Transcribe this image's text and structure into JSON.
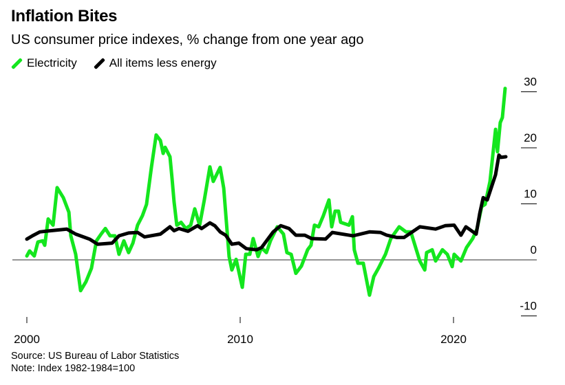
{
  "chart_data": {
    "type": "line",
    "title": "Inflation Bites",
    "subtitle": "US consumer price indexes, % change from one year ago",
    "xlabel": "",
    "ylabel": "",
    "xlim": [
      2000,
      2022.6
    ],
    "ylim": [
      -10,
      30
    ],
    "x_ticks": [
      2000,
      2010,
      2020
    ],
    "x_tick_labels": [
      "2000",
      "2010",
      "2020"
    ],
    "y_ticks": [
      30,
      20,
      10,
      0,
      -10
    ],
    "y_tick_labels": [
      "30",
      "20",
      "10",
      "0",
      "-10"
    ],
    "legend_position": "top-left",
    "zero_line": true,
    "series": [
      {
        "name": "Electricity",
        "color": "#14e61e",
        "x": [
          2000.0,
          2000.13,
          2000.35,
          2000.52,
          2000.74,
          2000.84,
          2001.0,
          2001.23,
          2001.42,
          2001.71,
          2001.97,
          2002.06,
          2002.29,
          2002.52,
          2002.77,
          2003.03,
          2003.26,
          2003.48,
          2003.68,
          2003.9,
          2004.13,
          2004.32,
          2004.55,
          2004.77,
          2004.97,
          2005.19,
          2005.42,
          2005.61,
          2005.84,
          2006.06,
          2006.26,
          2006.39,
          2006.48,
          2006.71,
          2006.81,
          2006.9,
          2007.03,
          2007.23,
          2007.45,
          2007.68,
          2007.87,
          2008.1,
          2008.32,
          2008.58,
          2008.74,
          2009.06,
          2009.23,
          2009.48,
          2009.61,
          2009.81,
          2010.1,
          2010.26,
          2010.45,
          2010.61,
          2010.84,
          2011.0,
          2011.23,
          2011.42,
          2011.74,
          2012.03,
          2012.19,
          2012.39,
          2012.61,
          2012.87,
          2013.16,
          2013.32,
          2013.48,
          2013.68,
          2013.9,
          2014.16,
          2014.29,
          2014.45,
          2014.61,
          2014.71,
          2015.1,
          2015.26,
          2015.35,
          2015.52,
          2015.77,
          2016.06,
          2016.26,
          2016.48,
          2016.81,
          2017.06,
          2017.45,
          2017.77,
          2018.0,
          2018.16,
          2018.42,
          2018.65,
          2018.74,
          2019.0,
          2019.16,
          2019.48,
          2019.71,
          2019.94,
          2020.03,
          2020.35,
          2020.61,
          2020.9,
          2021.1,
          2021.32,
          2021.48,
          2021.71,
          2021.97,
          2022.06,
          2022.19,
          2022.29,
          2022.42
        ],
        "values": [
          0.7,
          1.6,
          0.7,
          3.2,
          3.4,
          2.6,
          7.3,
          6.2,
          12.9,
          11.1,
          8.5,
          4.3,
          1.0,
          -5.5,
          -3.9,
          -1.5,
          3.4,
          4.6,
          5.6,
          4.3,
          4.3,
          1.0,
          3.4,
          1.3,
          3.0,
          6.2,
          7.9,
          9.9,
          16.5,
          22.3,
          21.3,
          19.0,
          20.1,
          18.4,
          14.4,
          10.4,
          6.2,
          6.7,
          5.6,
          6.2,
          9.1,
          6.2,
          10.7,
          16.6,
          14.0,
          16.5,
          12.8,
          0.6,
          -1.8,
          0.1,
          -4.9,
          1.0,
          1.0,
          3.8,
          0.6,
          2.2,
          1.3,
          3.4,
          5.9,
          4.6,
          1.3,
          1.0,
          -2.4,
          -1.1,
          1.8,
          2.6,
          6.2,
          5.9,
          7.9,
          10.7,
          5.9,
          8.7,
          8.7,
          6.7,
          6.2,
          7.7,
          1.8,
          -0.6,
          -0.6,
          -6.3,
          -3.0,
          -1.5,
          1.0,
          3.8,
          5.9,
          5.0,
          5.0,
          3.0,
          -0.2,
          -1.8,
          1.3,
          1.8,
          -0.2,
          1.8,
          1.0,
          -1.2,
          1.0,
          -0.2,
          2.2,
          3.8,
          5.5,
          9.5,
          9.9,
          14.0,
          23.3,
          19.3,
          24.5,
          25.4,
          30.6
        ]
      },
      {
        "name": "All items less energy",
        "color": "#000000",
        "x": [
          2000.0,
          2000.26,
          2000.61,
          2001.1,
          2001.87,
          2002.29,
          2002.94,
          2003.32,
          2004.0,
          2004.32,
          2004.77,
          2005.19,
          2005.52,
          2006.26,
          2006.71,
          2006.9,
          2007.13,
          2007.55,
          2008.0,
          2008.19,
          2008.58,
          2008.81,
          2009.06,
          2009.32,
          2009.61,
          2009.94,
          2010.29,
          2010.77,
          2011.0,
          2011.55,
          2011.9,
          2012.29,
          2012.61,
          2013.03,
          2013.35,
          2014.0,
          2014.32,
          2015.29,
          2016.06,
          2016.58,
          2016.87,
          2017.35,
          2017.68,
          2018.42,
          2019.16,
          2019.61,
          2020.03,
          2020.35,
          2020.58,
          2021.06,
          2021.23,
          2021.39,
          2021.58,
          2021.97,
          2022.13,
          2022.23,
          2022.45
        ],
        "values": [
          3.7,
          4.3,
          5.0,
          5.2,
          5.5,
          4.6,
          3.7,
          2.8,
          3.0,
          4.3,
          4.8,
          4.9,
          4.1,
          4.6,
          5.9,
          5.2,
          5.6,
          5.1,
          6.1,
          5.6,
          6.6,
          6.1,
          5.0,
          4.4,
          2.8,
          3.0,
          2.0,
          1.8,
          2.2,
          5.0,
          6.1,
          5.6,
          4.4,
          4.4,
          3.8,
          3.7,
          4.9,
          4.3,
          5.0,
          4.9,
          4.4,
          4.0,
          4.0,
          5.9,
          5.5,
          6.1,
          6.2,
          4.4,
          5.9,
          4.6,
          8.3,
          11.1,
          10.7,
          15.2,
          18.7,
          18.3,
          18.4
        ]
      }
    ]
  },
  "source": "Source: US Bureau of Labor Statistics",
  "note": "Note: Index 1982-1984=100"
}
